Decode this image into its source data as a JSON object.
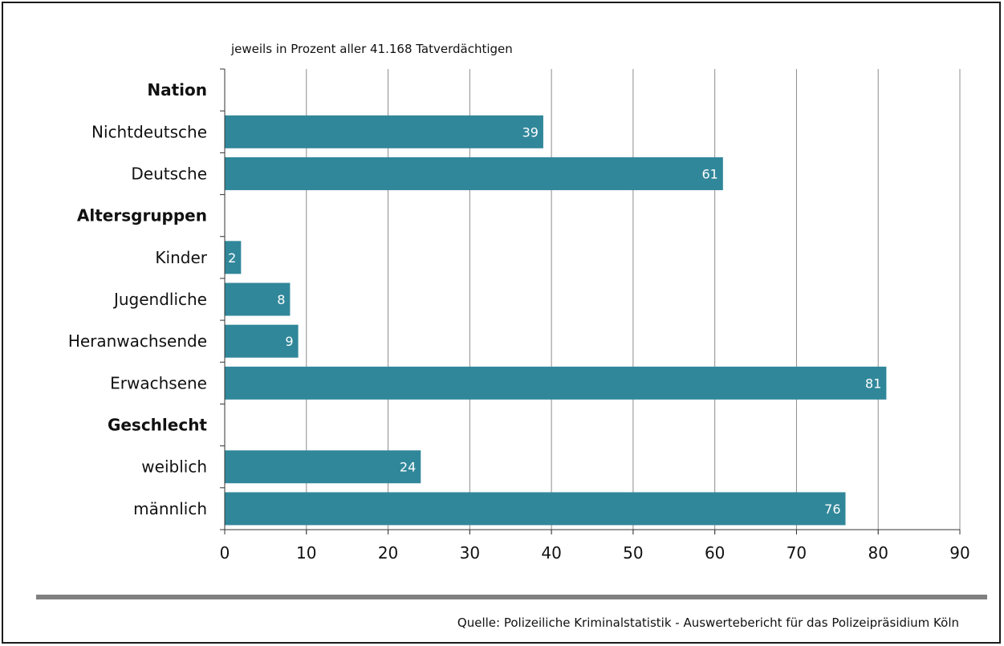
{
  "chart_data": {
    "type": "bar",
    "orientation": "horizontal",
    "subtitle": "jeweils in Prozent aller 41.168 Tatverdächtigen",
    "source": "Quelle: Polizeiliche Kriminalstatistik - Auswertebericht für das Polizeipräsidium Köln",
    "xlim": [
      0,
      90
    ],
    "xticks": [
      0,
      10,
      20,
      30,
      40,
      50,
      60,
      70,
      80,
      90
    ],
    "grid": true,
    "bar_color": "#31879a",
    "rows": [
      {
        "label": "Nation",
        "group": true
      },
      {
        "label": "Nichtdeutsche",
        "value": 39
      },
      {
        "label": "Deutsche",
        "value": 61
      },
      {
        "label": "Altersgruppen",
        "group": true
      },
      {
        "label": "Kinder",
        "value": 2
      },
      {
        "label": "Jugendliche",
        "value": 8
      },
      {
        "label": "Heranwachsende",
        "value": 9
      },
      {
        "label": "Erwachsene",
        "value": 81
      },
      {
        "label": "Geschlecht",
        "group": true
      },
      {
        "label": "weiblich",
        "value": 24
      },
      {
        "label": "männlich",
        "value": 76
      }
    ]
  }
}
